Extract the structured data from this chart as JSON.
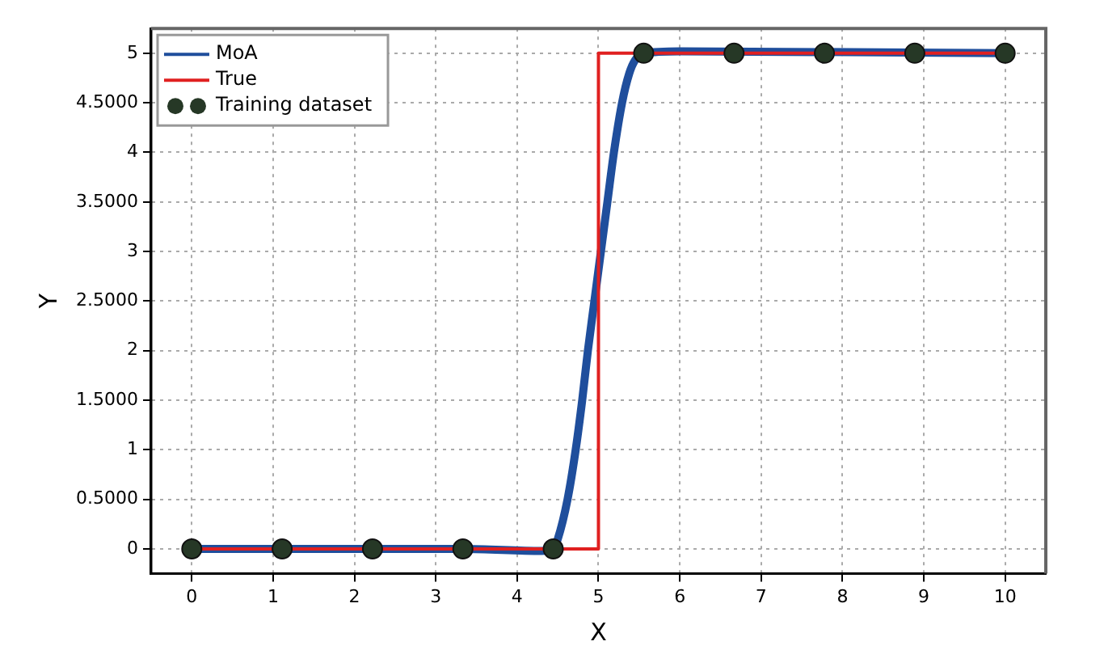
{
  "chart_data": {
    "type": "line",
    "xlabel": "X",
    "ylabel": "Y",
    "xlim": [
      -0.5,
      10.5
    ],
    "ylim": [
      -0.25,
      5.25
    ],
    "xticks": [
      0,
      1,
      2,
      3,
      4,
      5,
      6,
      7,
      8,
      9,
      10
    ],
    "yticks": [
      0,
      {
        "value": 0.5,
        "label": "0.5000"
      },
      1,
      {
        "value": 1.5,
        "label": "1.5000"
      },
      2,
      {
        "value": 2.5,
        "label": "2.5000"
      },
      3,
      {
        "value": 3.5,
        "label": "3.5000"
      },
      4,
      {
        "value": 4.5,
        "label": "4.5000"
      },
      5
    ],
    "grid": true,
    "legend": "top left",
    "series": [
      {
        "name": "MoA",
        "color": "#1f4e9c",
        "line_style": "solid",
        "x": [
          0,
          1.111,
          2.222,
          3.333,
          4.3,
          4.444,
          4.5,
          4.62,
          4.72,
          4.8,
          4.87,
          4.95,
          5.03,
          5.11,
          5.19,
          5.29,
          5.38,
          5.45,
          5.556,
          6,
          10
        ],
        "values": [
          0,
          0,
          0,
          0,
          -0.02,
          0,
          0.1,
          0.5,
          1,
          1.5,
          2,
          2.5,
          3,
          3.5,
          4,
          4.5,
          4.8,
          4.93,
          5,
          5.02,
          5
        ]
      },
      {
        "name": "True",
        "color": "#e02020",
        "line_style": "solid",
        "x": [
          0,
          5,
          5,
          10
        ],
        "values": [
          0,
          0,
          5,
          5
        ]
      },
      {
        "name": "Training dataset",
        "type": "scatter",
        "color": "#263826",
        "marker": "circle",
        "x": [
          0,
          1.111,
          2.222,
          3.333,
          4.444,
          5.556,
          6.667,
          7.778,
          8.889,
          10
        ],
        "values": [
          0,
          0,
          0,
          0,
          0,
          5,
          5,
          5,
          5,
          5
        ]
      }
    ]
  }
}
